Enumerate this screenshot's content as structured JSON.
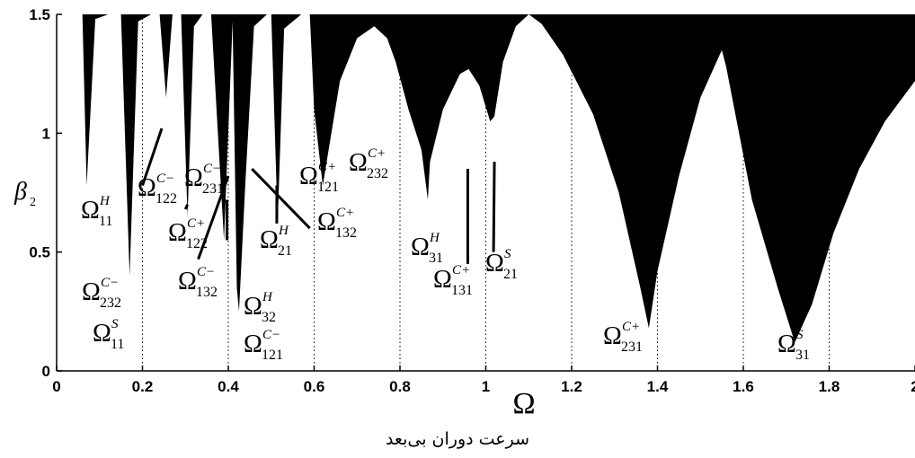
{
  "chart_data": {
    "type": "area",
    "xlabel": "Ω",
    "ylabel": "β",
    "ylabel_sub": "2",
    "xlim": [
      0,
      2
    ],
    "ylim": [
      0,
      1.5
    ],
    "x_ticks": [
      0,
      0.2,
      0.4,
      0.6,
      0.8,
      1,
      1.2,
      1.4,
      1.6,
      1.8,
      2
    ],
    "x_tick_labels": [
      "0",
      "0.2",
      "0.4",
      "0.6",
      "0.8",
      "1",
      "1.2",
      "1.4",
      "1.6",
      "1.8",
      "2"
    ],
    "y_ticks": [
      0,
      0.5,
      1,
      1.5
    ],
    "y_tick_labels": [
      "0",
      "0.5",
      "1",
      "1.5"
    ],
    "dotted_verticals": [
      0.2,
      0.4,
      0.6,
      0.8,
      1,
      1.2,
      1.4,
      1.6,
      1.8
    ],
    "fill_color": "#000000",
    "unstable_region_boundary": [
      [
        0.0,
        1.5
      ],
      [
        0.06,
        1.5
      ],
      [
        0.07,
        0.78
      ],
      [
        0.09,
        1.48
      ],
      [
        0.12,
        1.5
      ],
      [
        0.15,
        1.5
      ],
      [
        0.17,
        0.4
      ],
      [
        0.19,
        1.47
      ],
      [
        0.22,
        1.5
      ],
      [
        0.24,
        1.5
      ],
      [
        0.255,
        1.15
      ],
      [
        0.27,
        1.5
      ],
      [
        0.29,
        1.5
      ],
      [
        0.305,
        0.65
      ],
      [
        0.32,
        1.45
      ],
      [
        0.34,
        1.5
      ],
      [
        0.36,
        1.5
      ],
      [
        0.39,
        0.55
      ],
      [
        0.41,
        1.47
      ],
      [
        0.42,
        0.35
      ],
      [
        0.425,
        0.25
      ],
      [
        0.44,
        0.8
      ],
      [
        0.46,
        1.45
      ],
      [
        0.49,
        1.5
      ],
      [
        0.5,
        1.5
      ],
      [
        0.515,
        0.62
      ],
      [
        0.53,
        1.44
      ],
      [
        0.57,
        1.5
      ],
      [
        0.59,
        1.5
      ],
      [
        0.6,
        1.1
      ],
      [
        0.62,
        0.78
      ],
      [
        0.66,
        1.22
      ],
      [
        0.7,
        1.4
      ],
      [
        0.74,
        1.45
      ],
      [
        0.77,
        1.4
      ],
      [
        0.79,
        1.3
      ],
      [
        0.82,
        1.1
      ],
      [
        0.85,
        0.93
      ],
      [
        0.865,
        0.72
      ],
      [
        0.87,
        0.88
      ],
      [
        0.9,
        1.1
      ],
      [
        0.94,
        1.25
      ],
      [
        0.96,
        1.27
      ],
      [
        0.985,
        1.2
      ],
      [
        1.01,
        1.05
      ],
      [
        1.02,
        1.07
      ],
      [
        1.04,
        1.3
      ],
      [
        1.07,
        1.45
      ],
      [
        1.1,
        1.5
      ],
      [
        1.13,
        1.46
      ],
      [
        1.18,
        1.33
      ],
      [
        1.25,
        1.08
      ],
      [
        1.31,
        0.75
      ],
      [
        1.36,
        0.35
      ],
      [
        1.38,
        0.18
      ],
      [
        1.4,
        0.42
      ],
      [
        1.45,
        0.82
      ],
      [
        1.5,
        1.15
      ],
      [
        1.55,
        1.35
      ],
      [
        1.56,
        1.28
      ],
      [
        1.62,
        0.72
      ],
      [
        1.68,
        0.35
      ],
      [
        1.72,
        0.12
      ],
      [
        1.76,
        0.28
      ],
      [
        1.81,
        0.58
      ],
      [
        1.87,
        0.85
      ],
      [
        1.93,
        1.05
      ],
      [
        2.0,
        1.22
      ],
      [
        2.0,
        1.5
      ]
    ],
    "line_segments": [
      {
        "x": [
          0.3,
          0.305
        ],
        "y": [
          0.68,
          0.7
        ]
      },
      {
        "x": [
          0.397,
          0.397
        ],
        "y": [
          0.55,
          0.72
        ]
      },
      {
        "x": [
          0.513,
          0.513
        ],
        "y": [
          0.62,
          0.78
        ]
      },
      {
        "x": [
          0.958,
          0.958
        ],
        "y": [
          0.45,
          0.85
        ]
      },
      {
        "x": [
          1.018,
          1.02
        ],
        "y": [
          0.5,
          0.88
        ]
      },
      {
        "x": [
          0.455,
          0.59
        ],
        "y": [
          0.85,
          0.6
        ]
      },
      {
        "x": [
          0.2,
          0.245
        ],
        "y": [
          0.78,
          1.02
        ]
      },
      {
        "x": [
          0.33,
          0.4
        ],
        "y": [
          0.47,
          0.82
        ]
      }
    ],
    "annotations": [
      {
        "main": "Ω",
        "sup": "H",
        "sub": "11"
      },
      {
        "main": "Ω",
        "sup": "C−",
        "sub": "122"
      },
      {
        "main": "Ω",
        "sup": "C−",
        "sub": "231"
      },
      {
        "main": "Ω",
        "sup": "C+",
        "sub": "122"
      },
      {
        "main": "Ω",
        "sup": "C−",
        "sub": "132"
      },
      {
        "main": "Ω",
        "sup": "H",
        "sub": "21"
      },
      {
        "main": "Ω",
        "sup": "C+",
        "sub": "132"
      },
      {
        "main": "Ω",
        "sup": "C+",
        "sub": "121"
      },
      {
        "main": "Ω",
        "sup": "C+",
        "sub": "232"
      },
      {
        "main": "Ω",
        "sup": "H",
        "sub": "31"
      },
      {
        "main": "Ω",
        "sup": "C+",
        "sub": "131"
      },
      {
        "main": "Ω",
        "sup": "S",
        "sub": "21"
      },
      {
        "main": "Ω",
        "sup": "C−",
        "sub": "232"
      },
      {
        "main": "Ω",
        "sup": "S",
        "sub": "11"
      },
      {
        "main": "Ω",
        "sup": "H",
        "sub": "32"
      },
      {
        "main": "Ω",
        "sup": "C−",
        "sub": "121"
      },
      {
        "main": "Ω",
        "sup": "C+",
        "sub": "231"
      },
      {
        "main": "Ω",
        "sup": "S",
        "sub": "31"
      }
    ]
  },
  "caption": "سرعت دوران بی‌بعد"
}
